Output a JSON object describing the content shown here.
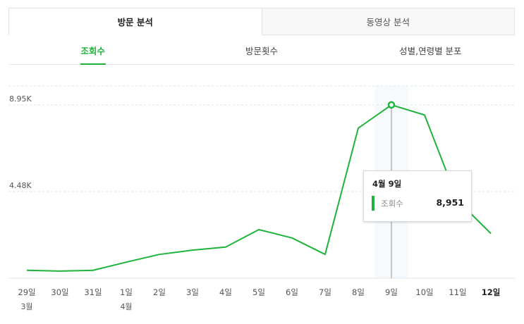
{
  "tabs_primary": [
    {
      "label": "방문 분석",
      "active": true
    },
    {
      "label": "동영상 분석",
      "active": false
    }
  ],
  "tabs_secondary": [
    {
      "label": "조회수",
      "active": true
    },
    {
      "label": "방문횟수",
      "active": false
    },
    {
      "label": "성별,연령별 분포",
      "active": false
    }
  ],
  "colors": {
    "accent": "#1fb33c",
    "grid": "#dbe6ec",
    "hover_band": "#f7fafc",
    "cursor": "#b5b5b5"
  },
  "chart_data": {
    "type": "line",
    "series": [
      {
        "values": [
          410,
          370,
          410,
          830,
          1230,
          1450,
          1610,
          2510,
          2080,
          1230,
          7750,
          8951,
          8430,
          4010,
          2310
        ]
      }
    ],
    "x": [
      "29일",
      "30일",
      "31일",
      "1일",
      "2일",
      "3일",
      "4일",
      "5일",
      "6일",
      "7일",
      "8일",
      "9일",
      "10일",
      "11일",
      "12일"
    ],
    "x_sublabels": [
      "3월",
      "",
      "",
      "4월",
      "",
      "",
      "",
      "",
      "",
      "",
      "",
      "",
      "",
      "",
      ""
    ],
    "x_bold_label": "12일",
    "yticks": [
      {
        "value": 4475,
        "label": "4.48K"
      },
      {
        "value": 8951,
        "label": "8.95K"
      }
    ],
    "ylim": [
      0,
      9930
    ],
    "grid": true,
    "highlight_index": 11,
    "tooltip": {
      "title": "4월 9일",
      "series_label": "조회수",
      "value_label": "8,951"
    }
  }
}
